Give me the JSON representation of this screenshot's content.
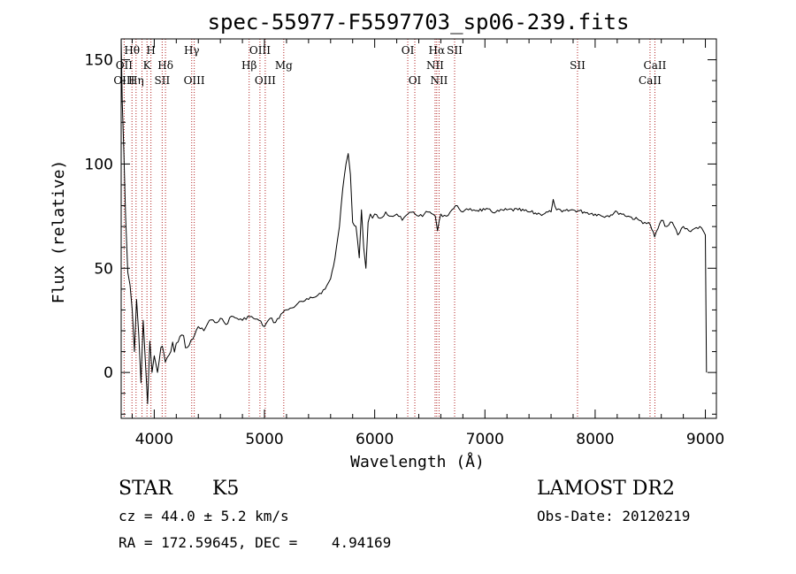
{
  "chart_data": {
    "type": "line",
    "title": "spec-55977-F5597703_sp06-239.fits",
    "xlabel": "Wavelength (Å)",
    "ylabel": "Flux (relative)",
    "xlim": [
      3700,
      9100
    ],
    "ylim": [
      -22,
      160
    ],
    "xticks": [
      4000,
      5000,
      6000,
      7000,
      8000,
      9000
    ],
    "yticks": [
      0,
      50,
      100,
      150
    ],
    "grid": false,
    "series": [
      {
        "color": "#000000",
        "x": [
          3700,
          3710,
          3725,
          3740,
          3760,
          3780,
          3800,
          3820,
          3840,
          3860,
          3880,
          3900,
          3920,
          3940,
          3960,
          3980,
          4000,
          4030,
          4060,
          4100,
          4150,
          4200,
          4250,
          4300,
          4350,
          4400,
          4450,
          4500,
          4550,
          4600,
          4650,
          4700,
          4750,
          4800,
          4850,
          4900,
          4950,
          5000,
          5050,
          5100,
          5150,
          5200,
          5250,
          5300,
          5350,
          5400,
          5450,
          5500,
          5550,
          5600,
          5640,
          5680,
          5710,
          5740,
          5760,
          5780,
          5800,
          5830,
          5860,
          5880,
          5900,
          5920,
          5940,
          5960,
          5980,
          6000,
          6050,
          6100,
          6150,
          6200,
          6250,
          6300,
          6350,
          6400,
          6450,
          6500,
          6550,
          6570,
          6600,
          6650,
          6700,
          6750,
          6800,
          6850,
          6900,
          7000,
          7100,
          7200,
          7300,
          7400,
          7500,
          7600,
          7620,
          7650,
          7700,
          7800,
          7900,
          8000,
          8100,
          8200,
          8300,
          8400,
          8450,
          8500,
          8540,
          8600,
          8650,
          8700,
          8750,
          8800,
          8850,
          8900,
          8950,
          9000,
          9010
        ],
        "values": [
          160,
          130,
          105,
          75,
          48,
          42,
          30,
          10,
          35,
          18,
          -5,
          25,
          5,
          -15,
          15,
          0,
          8,
          0,
          12,
          5,
          10,
          14,
          18,
          12,
          16,
          22,
          20,
          25,
          24,
          26,
          23,
          27,
          26,
          25,
          27,
          26,
          25,
          22,
          26,
          24,
          28,
          30,
          31,
          33,
          34,
          35,
          36,
          38,
          40,
          45,
          55,
          70,
          88,
          100,
          105,
          95,
          72,
          70,
          55,
          78,
          60,
          50,
          72,
          76,
          74,
          76,
          74,
          77,
          75,
          76,
          73,
          76,
          77,
          75,
          76,
          77,
          75,
          68,
          76,
          75,
          78,
          80,
          77,
          78,
          78,
          78,
          77,
          78,
          78,
          77,
          76,
          77,
          83,
          78,
          77,
          78,
          77,
          76,
          75,
          77,
          75,
          73,
          72,
          71,
          65,
          73,
          70,
          72,
          66,
          70,
          68,
          69,
          70,
          66,
          0
        ]
      }
    ],
    "lines_top": [
      {
        "label": "Hθ",
        "x": 3798,
        "row": 0
      },
      {
        "label": "H",
        "x": 3970,
        "row": 0
      },
      {
        "label": "Hγ",
        "x": 4340,
        "row": 0
      },
      {
        "label": "OIII",
        "x": 4959,
        "row": 0
      },
      {
        "label": "OI",
        "x": 6300,
        "row": 0
      },
      {
        "label": "Hα",
        "x": 6563,
        "row": 0
      },
      {
        "label": "SII",
        "x": 6725,
        "row": 0
      },
      {
        "label": "OII",
        "x": 3727,
        "row": 1
      },
      {
        "label": "K",
        "x": 3934,
        "row": 1
      },
      {
        "label": "Hδ",
        "x": 4102,
        "row": 1
      },
      {
        "label": "Hβ",
        "x": 4861,
        "row": 1
      },
      {
        "label": "Mg",
        "x": 5175,
        "row": 1
      },
      {
        "label": "NII",
        "x": 6548,
        "row": 1
      },
      {
        "label": "SII",
        "x": 7840,
        "row": 1
      },
      {
        "label": "CaII",
        "x": 8542,
        "row": 1
      },
      {
        "label": "OIII",
        "x": 3727,
        "row": 2
      },
      {
        "label": "Hη",
        "x": 3835,
        "row": 2
      },
      {
        "label": "SII",
        "x": 4072,
        "row": 2
      },
      {
        "label": "OIII",
        "x": 4363,
        "row": 2
      },
      {
        "label": "OIII",
        "x": 5007,
        "row": 2
      },
      {
        "label": "OI",
        "x": 6364,
        "row": 2
      },
      {
        "label": "NII",
        "x": 6584,
        "row": 2
      },
      {
        "label": "CaII",
        "x": 8498,
        "row": 2
      }
    ],
    "line_positions": [
      3727,
      3798,
      3835,
      3889,
      3934,
      3970,
      4072,
      4102,
      4340,
      4363,
      4861,
      4959,
      5007,
      5175,
      6300,
      6364,
      6548,
      6563,
      6584,
      6725,
      7840,
      8498,
      8542
    ]
  },
  "info": {
    "object": "STAR",
    "subclass": "K5",
    "survey": "LAMOST DR2",
    "cz": "cz = 44.0 ± 5.2 km/s",
    "obs_date": "Obs-Date: 20120219",
    "coords": "RA = 172.59645, DEC =    4.94169"
  }
}
